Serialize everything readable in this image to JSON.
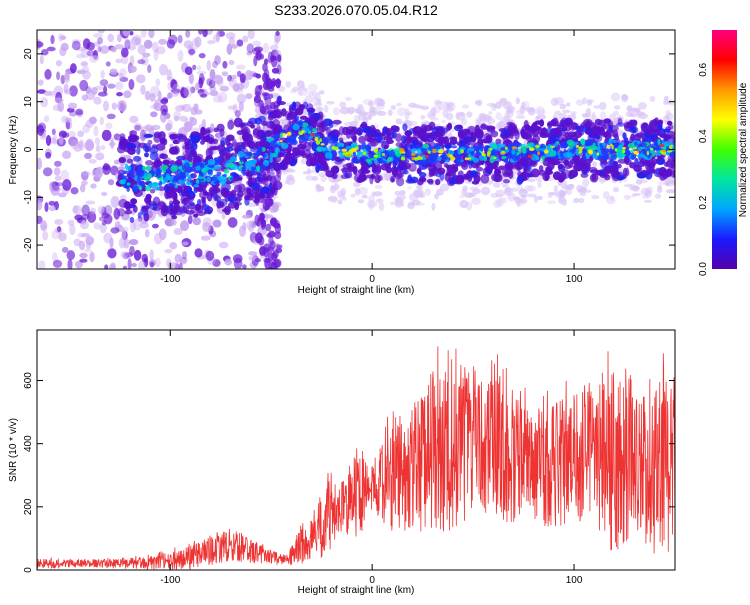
{
  "title": "S233.2026.070.05.04.R12",
  "colors": {
    "axis": "#000000",
    "snr_line": "#ee3333",
    "colorbar": [
      "#5500aa",
      "#1a1aff",
      "#00a6ff",
      "#00e6a0",
      "#40ff00",
      "#ffff00",
      "#ff9900",
      "#ff0000",
      "#ff0080"
    ]
  },
  "chart_data": [
    {
      "type": "heatmap",
      "name": "spectrogram",
      "xlabel": "Height of straight line (km)",
      "ylabel": "Frequency (Hz)",
      "xlim": [
        -166,
        150
      ],
      "ylim": [
        -25,
        25
      ],
      "xticks": [
        -100,
        0,
        100
      ],
      "xtick_labels": [
        "-100",
        "0",
        "100"
      ],
      "yticks": [
        -20,
        -10,
        0,
        10,
        20
      ],
      "ytick_labels": [
        "-20",
        "-10",
        "0",
        "10",
        "20"
      ],
      "colorbar": {
        "label": "Normalized spectral amplitude",
        "lim": [
          0,
          0.72
        ],
        "ticks": [
          0.0,
          0.2,
          0.4,
          0.6
        ],
        "tick_labels": [
          "0.0",
          "0.2",
          "0.4",
          "0.6"
        ]
      },
      "description_ridge": [
        {
          "x": -120,
          "y": -6
        },
        {
          "x": -80,
          "y": -5
        },
        {
          "x": -55,
          "y": -2
        },
        {
          "x": -45,
          "y": 2
        },
        {
          "x": -35,
          "y": 4
        },
        {
          "x": -20,
          "y": 0
        },
        {
          "x": 0,
          "y": -1
        },
        {
          "x": 50,
          "y": -1
        },
        {
          "x": 100,
          "y": 0
        },
        {
          "x": 150,
          "y": 0
        }
      ]
    },
    {
      "type": "line",
      "name": "snr",
      "xlabel": "Height of straight line (km)",
      "ylabel": "SNR (10 * v/v)",
      "xlim": [
        -166,
        150
      ],
      "ylim": [
        0,
        760
      ],
      "xticks": [
        -100,
        0,
        100
      ],
      "xtick_labels": [
        "-100",
        "0",
        "100"
      ],
      "yticks": [
        0,
        200,
        400,
        600
      ],
      "ytick_labels": [
        "0",
        "200",
        "400",
        "600"
      ],
      "series": [
        {
          "name": "SNR",
          "envelope": {
            "x": [
              -166,
              -140,
              -110,
              -90,
              -80,
              -70,
              -60,
              -50,
              -42,
              -38,
              -30,
              -22,
              -15,
              -8,
              0,
              10,
              20,
              30,
              40,
              50,
              60,
              70,
              80,
              90,
              100,
              110,
              120,
              130,
              140,
              150
            ],
            "mean": [
              20,
              20,
              22,
              40,
              60,
              80,
              60,
              40,
              30,
              60,
              100,
              160,
              200,
              230,
              260,
              300,
              330,
              360,
              380,
              390,
              380,
              350,
              320,
              330,
              350,
              360,
              340,
              330,
              320,
              330
            ],
            "peak": [
              40,
              35,
              50,
              90,
              120,
              150,
              110,
              70,
              50,
              120,
              200,
              330,
              300,
              420,
              360,
              540,
              600,
              700,
              740,
              660,
              700,
              620,
              560,
              600,
              620,
              680,
              740,
              640,
              680,
              740
            ]
          }
        }
      ]
    }
  ]
}
